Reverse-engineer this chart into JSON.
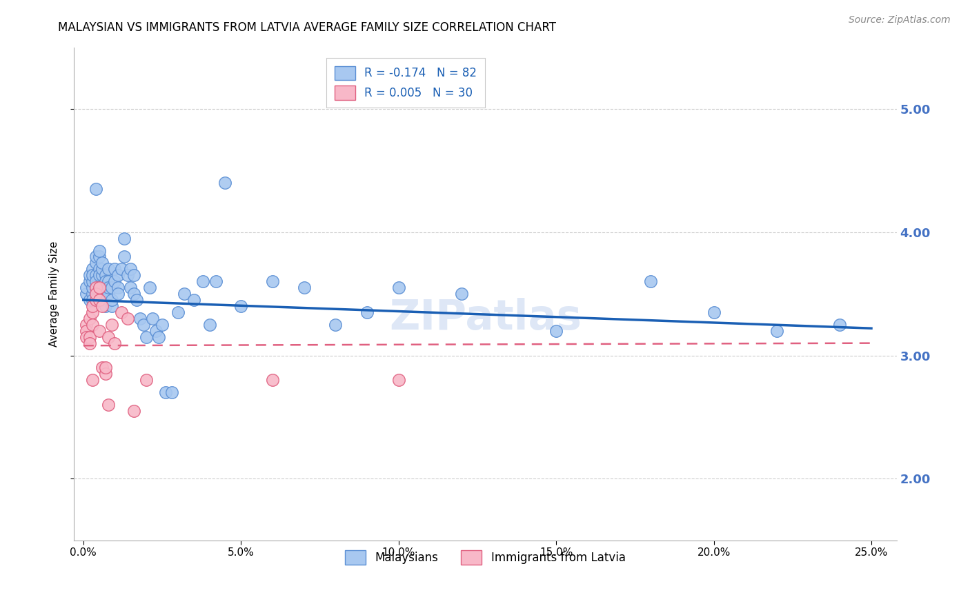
{
  "title": "MALAYSIAN VS IMMIGRANTS FROM LATVIA AVERAGE FAMILY SIZE CORRELATION CHART",
  "source": "Source: ZipAtlas.com",
  "ylabel": "Average Family Size",
  "right_axis_color": "#4472C4",
  "background_color": "#FFFFFF",
  "blue_color": "#A8C8F0",
  "blue_edge_color": "#5B8FD4",
  "pink_color": "#F8B8C8",
  "pink_edge_color": "#E06080",
  "blue_line_color": "#1A5FB4",
  "pink_line_color": "#E06080",
  "malaysians_x": [
    0.001,
    0.001,
    0.002,
    0.002,
    0.002,
    0.003,
    0.003,
    0.003,
    0.003,
    0.003,
    0.003,
    0.004,
    0.004,
    0.004,
    0.004,
    0.004,
    0.004,
    0.005,
    0.005,
    0.005,
    0.005,
    0.005,
    0.005,
    0.006,
    0.006,
    0.006,
    0.006,
    0.006,
    0.007,
    0.007,
    0.007,
    0.007,
    0.008,
    0.008,
    0.008,
    0.008,
    0.009,
    0.009,
    0.009,
    0.01,
    0.01,
    0.011,
    0.011,
    0.011,
    0.012,
    0.013,
    0.013,
    0.014,
    0.015,
    0.015,
    0.016,
    0.016,
    0.017,
    0.018,
    0.019,
    0.02,
    0.021,
    0.022,
    0.023,
    0.024,
    0.025,
    0.026,
    0.028,
    0.03,
    0.032,
    0.035,
    0.038,
    0.04,
    0.042,
    0.045,
    0.05,
    0.06,
    0.07,
    0.08,
    0.09,
    0.1,
    0.12,
    0.15,
    0.18,
    0.2,
    0.22,
    0.24
  ],
  "malaysians_y": [
    3.5,
    3.55,
    3.6,
    3.45,
    3.65,
    3.5,
    3.55,
    3.45,
    3.6,
    3.7,
    3.65,
    3.75,
    3.8,
    3.65,
    3.55,
    3.6,
    4.35,
    3.7,
    3.8,
    3.85,
    3.5,
    3.65,
    3.55,
    3.65,
    3.55,
    3.7,
    3.45,
    3.75,
    3.65,
    3.4,
    3.6,
    3.55,
    3.7,
    3.5,
    3.6,
    3.55,
    3.55,
    3.4,
    3.45,
    3.6,
    3.7,
    3.65,
    3.55,
    3.5,
    3.7,
    3.8,
    3.95,
    3.65,
    3.7,
    3.55,
    3.65,
    3.5,
    3.45,
    3.3,
    3.25,
    3.15,
    3.55,
    3.3,
    3.2,
    3.15,
    3.25,
    2.7,
    2.7,
    3.35,
    3.5,
    3.45,
    3.6,
    3.25,
    3.6,
    4.4,
    3.4,
    3.6,
    3.55,
    3.25,
    3.35,
    3.55,
    3.5,
    3.2,
    3.6,
    3.35,
    3.2,
    3.25
  ],
  "latvia_x": [
    0.001,
    0.001,
    0.001,
    0.002,
    0.002,
    0.002,
    0.003,
    0.003,
    0.003,
    0.003,
    0.004,
    0.004,
    0.004,
    0.005,
    0.005,
    0.005,
    0.006,
    0.006,
    0.007,
    0.007,
    0.008,
    0.008,
    0.009,
    0.01,
    0.012,
    0.014,
    0.016,
    0.02,
    0.06,
    0.1
  ],
  "latvia_y": [
    3.25,
    3.2,
    3.15,
    3.3,
    3.15,
    3.1,
    3.35,
    3.25,
    3.4,
    2.8,
    3.55,
    3.45,
    3.5,
    3.55,
    3.45,
    3.2,
    3.4,
    2.9,
    2.85,
    2.9,
    3.15,
    2.6,
    3.25,
    3.1,
    3.35,
    3.3,
    2.55,
    2.8,
    2.8,
    2.8
  ],
  "blue_trendline_x": [
    0.0,
    0.25
  ],
  "blue_trendline_y": [
    3.45,
    3.22
  ],
  "pink_trendline_x": [
    0.0,
    0.25
  ],
  "pink_trendline_y": [
    3.08,
    3.1
  ],
  "xlim": [
    -0.003,
    0.258
  ],
  "ylim": [
    1.5,
    5.5
  ],
  "yticks": [
    2.0,
    3.0,
    4.0,
    5.0
  ],
  "xtick_positions": [
    0.0,
    0.05,
    0.1,
    0.15,
    0.2,
    0.25
  ],
  "xtick_labels": [
    "0.0%",
    "5.0%",
    "10.0%",
    "15.0%",
    "20.0%",
    "25.0%"
  ],
  "legend_blue_text": "R = -0.174   N = 82",
  "legend_pink_text": "R = 0.005   N = 30",
  "legend_blue_label": "Malaysians",
  "legend_pink_label": "Immigrants from Latvia",
  "watermark": "ZIPatlas",
  "watermark_color": "#C8D8F0"
}
